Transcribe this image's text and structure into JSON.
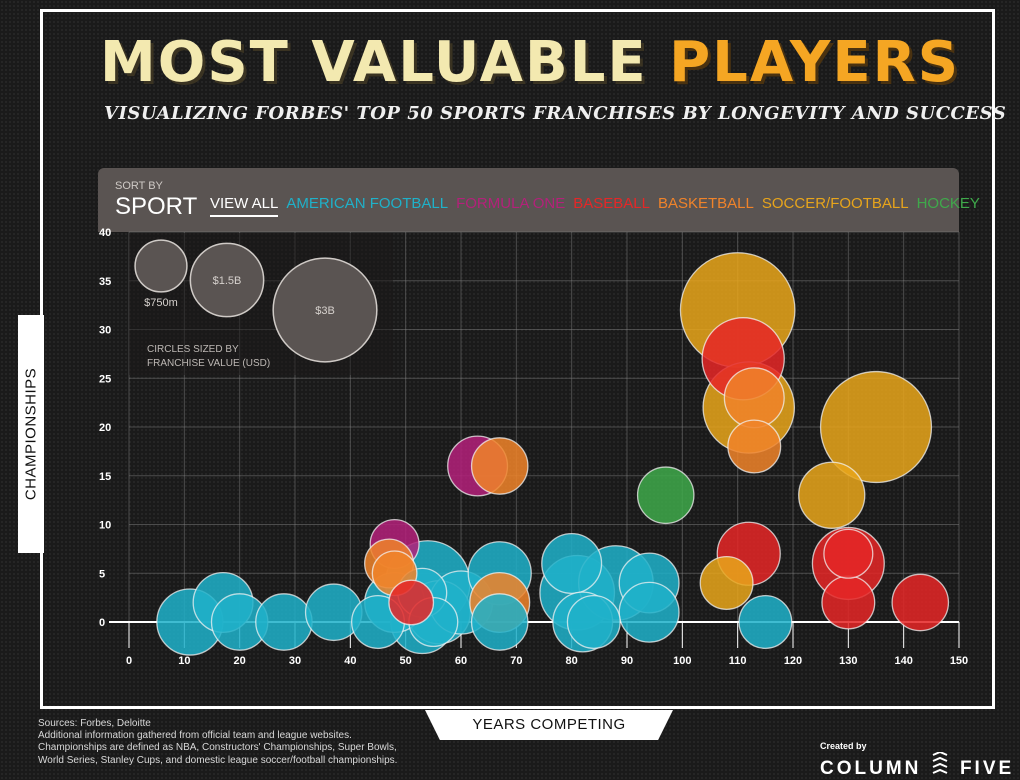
{
  "title": {
    "part1": "MOST VALUABLE",
    "part2": "PLAYERS"
  },
  "subtitle": "VISUALIZING FORBES' TOP 50 SPORTS FRANCHISES BY LONGEVITY AND SUCCESS",
  "sort": {
    "label": "SORT BY",
    "heading": "SPORT",
    "filters": [
      {
        "label": "VIEW ALL",
        "color": "#ffffff"
      },
      {
        "label": "AMERICAN FOOTBALL",
        "color": "#1fb1c9"
      },
      {
        "label": "FORMULA ONE",
        "color": "#b3217a"
      },
      {
        "label": "BASEBALL",
        "color": "#e52727"
      },
      {
        "label": "BASKETBALL",
        "color": "#f0832a"
      },
      {
        "label": "SOCCER/FOOTBALL",
        "color": "#e8a51b"
      },
      {
        "label": "HOCKEY",
        "color": "#3fa94b"
      }
    ]
  },
  "legend": {
    "sizes": [
      {
        "label": "$750m",
        "value": 0.75
      },
      {
        "label": "$1.5B",
        "value": 1.5
      },
      {
        "label": "$3B",
        "value": 3
      }
    ],
    "note_line1": "CIRCLES SIZED BY",
    "note_line2": "FRANCHISE VALUE (USD)"
  },
  "axes": {
    "xlabel": "YEARS COMPETING",
    "ylabel": "CHAMPIONSHIPS"
  },
  "sources": [
    "Sources: Forbes, Deloitte",
    "Additional information gathered from official team and league websites.",
    "Championships are defined as NBA, Constructors' Championships, Super Bowls,",
    "World Series, Stanley Cups, and domestic league soccer/football championships."
  ],
  "credit": {
    "small": "Created by",
    "left": "COLUMN",
    "right": "FIVE"
  },
  "chart_data": {
    "type": "scatter",
    "xlabel": "YEARS COMPETING",
    "ylabel": "CHAMPIONSHIPS",
    "xlim": [
      0,
      150
    ],
    "ylim": [
      0,
      40
    ],
    "xticks": [
      0,
      10,
      20,
      30,
      40,
      50,
      60,
      70,
      80,
      90,
      100,
      110,
      120,
      130,
      140,
      150
    ],
    "yticks": [
      0,
      5,
      10,
      15,
      20,
      25,
      30,
      35,
      40
    ],
    "grid": true,
    "size_unit": "franchise value (USD billions)",
    "colors": {
      "football": "#1fb1c9",
      "f1": "#b3217a",
      "baseball": "#e52727",
      "basketball": "#f0832a",
      "soccer": "#e8a51b",
      "hockey": "#3fa94b"
    },
    "points": [
      {
        "sport": "soccer",
        "x": 110,
        "y": 32,
        "size": 3.3
      },
      {
        "sport": "soccer",
        "x": 135,
        "y": 20,
        "size": 3.1
      },
      {
        "sport": "soccer",
        "x": 112,
        "y": 22,
        "size": 2.1
      },
      {
        "sport": "baseball",
        "x": 111,
        "y": 27,
        "size": 1.7
      },
      {
        "sport": "basketball",
        "x": 113,
        "y": 23,
        "size": 0.9
      },
      {
        "sport": "basketball",
        "x": 113,
        "y": 18,
        "size": 0.7
      },
      {
        "sport": "soccer",
        "x": 127,
        "y": 13,
        "size": 1.1
      },
      {
        "sport": "baseball",
        "x": 130,
        "y": 6,
        "size": 1.3
      },
      {
        "sport": "baseball",
        "x": 130,
        "y": 7,
        "size": 0.6
      },
      {
        "sport": "baseball",
        "x": 112,
        "y": 7,
        "size": 1.0
      },
      {
        "sport": "baseball",
        "x": 130,
        "y": 2,
        "size": 0.7
      },
      {
        "sport": "baseball",
        "x": 143,
        "y": 2,
        "size": 0.8
      },
      {
        "sport": "soccer",
        "x": 108,
        "y": 4,
        "size": 0.7
      },
      {
        "sport": "hockey",
        "x": 97,
        "y": 13,
        "size": 0.8
      },
      {
        "sport": "football",
        "x": 115,
        "y": 0,
        "size": 0.7
      },
      {
        "sport": "f1",
        "x": 63,
        "y": 16,
        "size": 0.9
      },
      {
        "sport": "basketball",
        "x": 67,
        "y": 16,
        "size": 0.8
      },
      {
        "sport": "f1",
        "x": 48,
        "y": 8,
        "size": 0.6
      },
      {
        "sport": "basketball",
        "x": 47,
        "y": 6,
        "size": 0.6
      },
      {
        "sport": "basketball",
        "x": 48,
        "y": 5,
        "size": 0.5
      },
      {
        "sport": "football",
        "x": 11,
        "y": 0,
        "size": 1.1
      },
      {
        "sport": "football",
        "x": 17,
        "y": 2,
        "size": 0.9
      },
      {
        "sport": "football",
        "x": 20,
        "y": 0,
        "size": 0.8
      },
      {
        "sport": "football",
        "x": 28,
        "y": 0,
        "size": 0.8
      },
      {
        "sport": "football",
        "x": 37,
        "y": 1,
        "size": 0.8
      },
      {
        "sport": "football",
        "x": 45,
        "y": 0,
        "size": 0.7
      },
      {
        "sport": "football",
        "x": 48,
        "y": 2,
        "size": 0.9
      },
      {
        "sport": "baseball",
        "x": 51,
        "y": 2,
        "size": 0.5
      },
      {
        "sport": "football",
        "x": 54,
        "y": 4,
        "size": 1.8
      },
      {
        "sport": "football",
        "x": 53,
        "y": 0,
        "size": 1.0
      },
      {
        "sport": "football",
        "x": 56,
        "y": 1,
        "size": 1.0
      },
      {
        "sport": "football",
        "x": 53,
        "y": 3,
        "size": 0.6
      },
      {
        "sport": "football",
        "x": 55,
        "y": 0,
        "size": 0.6
      },
      {
        "sport": "football",
        "x": 60,
        "y": 2,
        "size": 1.0
      },
      {
        "sport": "football",
        "x": 67,
        "y": 5,
        "size": 1.0
      },
      {
        "sport": "basketball",
        "x": 67,
        "y": 2,
        "size": 0.9
      },
      {
        "sport": "football",
        "x": 67,
        "y": 0,
        "size": 0.8
      },
      {
        "sport": "football",
        "x": 80,
        "y": 6,
        "size": 0.9
      },
      {
        "sport": "football",
        "x": 81,
        "y": 3,
        "size": 1.4
      },
      {
        "sport": "football",
        "x": 88,
        "y": 4,
        "size": 1.4
      },
      {
        "sport": "football",
        "x": 82,
        "y": 0,
        "size": 0.9
      },
      {
        "sport": "football",
        "x": 84,
        "y": 0,
        "size": 0.7
      },
      {
        "sport": "football",
        "x": 94,
        "y": 4,
        "size": 0.9
      },
      {
        "sport": "football",
        "x": 94,
        "y": 1,
        "size": 0.9
      }
    ]
  }
}
